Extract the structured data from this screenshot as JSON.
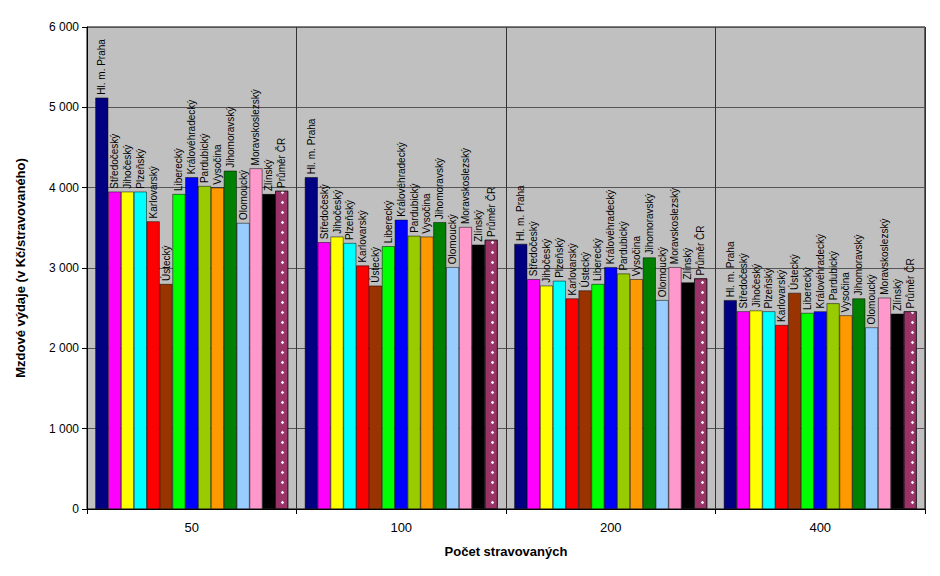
{
  "chart_data": {
    "type": "bar",
    "x_label": "Počet stravovaných",
    "y_label": "Mzdové výdaje (v Kč/stravovaného)",
    "categories": [
      "50",
      "100",
      "200",
      "400"
    ],
    "series": [
      {
        "name": "Hl. m. Praha",
        "color": "#000080",
        "values": [
          5120,
          4130,
          3300,
          2600
        ]
      },
      {
        "name": "Středočeský",
        "color": "#ff00ff",
        "values": [
          3950,
          3320,
          2860,
          2460
        ]
      },
      {
        "name": "Jihočeský",
        "color": "#ffff00",
        "values": [
          3950,
          3390,
          2780,
          2470
        ]
      },
      {
        "name": "Plzeňský",
        "color": "#00ffff",
        "values": [
          3950,
          3310,
          2840,
          2460
        ]
      },
      {
        "name": "Karlovarský",
        "color": "#ff0000",
        "values": [
          3580,
          3030,
          2620,
          2290
        ]
      },
      {
        "name": "Ústecký",
        "color": "#993300",
        "values": [
          2800,
          2780,
          2720,
          2690
        ]
      },
      {
        "name": "Liberecký",
        "color": "#00ff00",
        "values": [
          3920,
          3270,
          2800,
          2440
        ]
      },
      {
        "name": "Královéhradecký",
        "color": "#0000ff",
        "values": [
          4130,
          3600,
          3010,
          2460
        ]
      },
      {
        "name": "Pardubický",
        "color": "#99cc00",
        "values": [
          4020,
          3400,
          2930,
          2560
        ]
      },
      {
        "name": "Vysočina",
        "color": "#ff9900",
        "values": [
          4000,
          3390,
          2860,
          2410
        ]
      },
      {
        "name": "Jihomoravský",
        "color": "#008000",
        "values": [
          4210,
          3570,
          3130,
          2620
        ]
      },
      {
        "name": "Olomoucký",
        "color": "#99ccff",
        "values": [
          3560,
          3010,
          2600,
          2260
        ]
      },
      {
        "name": "Moravskoslezský",
        "color": "#ff99cc",
        "values": [
          4240,
          3510,
          3010,
          2630
        ]
      },
      {
        "name": "Zlínský",
        "color": "#000000",
        "values": [
          3920,
          3290,
          2820,
          2430
        ]
      },
      {
        "name": "Průměr ČR",
        "color": "#993366",
        "values": [
          3960,
          3350,
          2870,
          2460
        ]
      }
    ],
    "ylim": [
      0,
      6000
    ],
    "yticks": [
      {
        "value": 0,
        "label": "0"
      },
      {
        "value": 1000,
        "label": "1 000"
      },
      {
        "value": 2000,
        "label": "2 000"
      },
      {
        "value": 3000,
        "label": "3 000"
      },
      {
        "value": 4000,
        "label": "4 000"
      },
      {
        "value": 5000,
        "label": "5 000"
      },
      {
        "value": 6000,
        "label": "6 000"
      }
    ],
    "grid": true
  }
}
